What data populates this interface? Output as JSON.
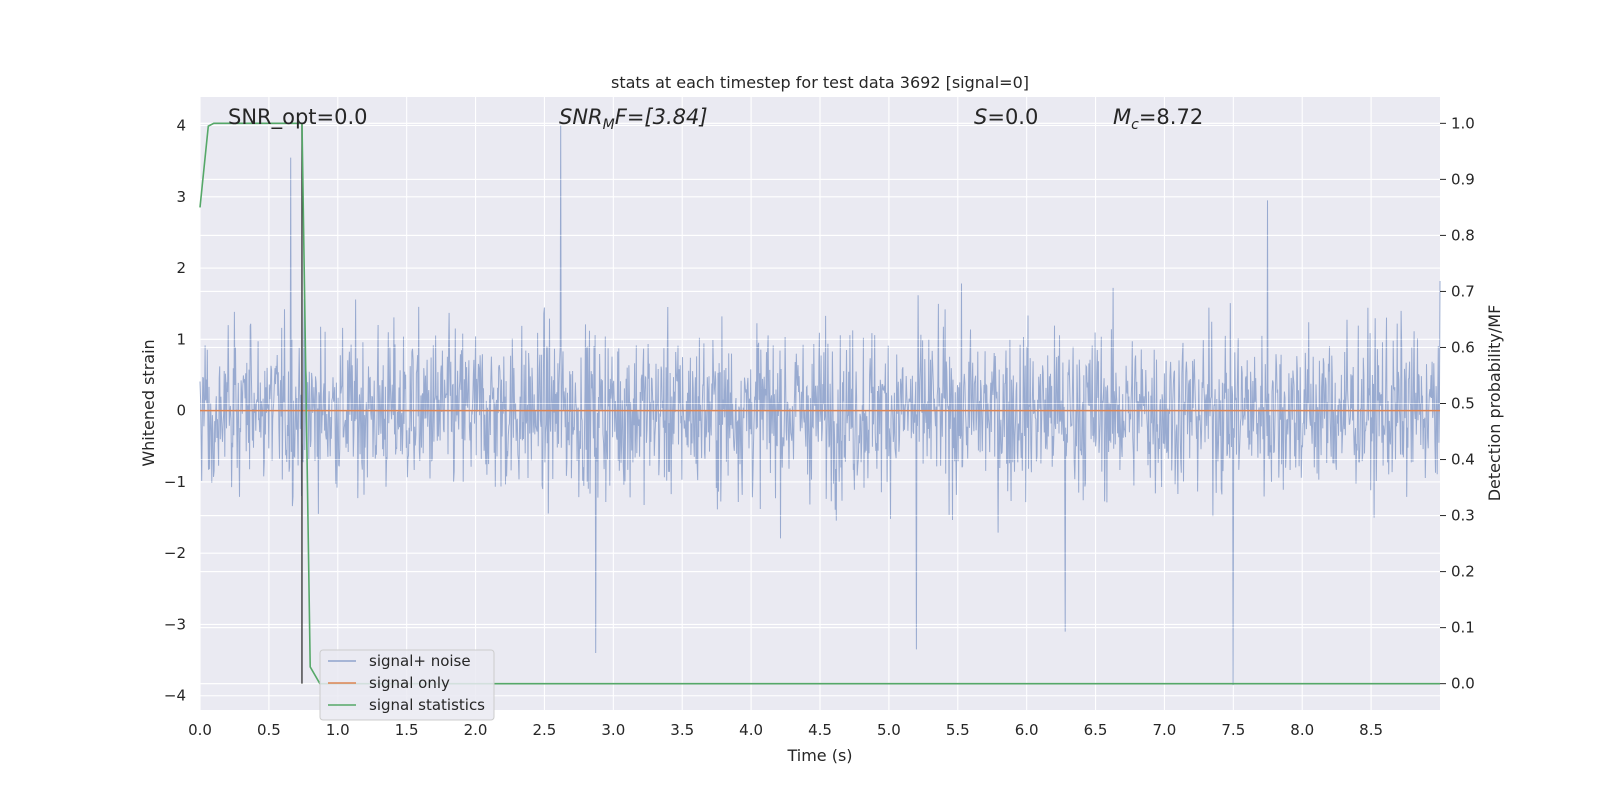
{
  "chart_data": {
    "type": "line",
    "title": "stats at each timestep for test data 3692 [signal=0]",
    "xlabel": "Time (s)",
    "ylabel_left": "Whitened strain",
    "ylabel_right": "Detection probability/MF",
    "xlim": [
      0.0,
      9.0
    ],
    "ylim_left": [
      -4.2,
      4.4
    ],
    "ylim_right": [
      -0.047,
      1.047
    ],
    "x_ticks": [
      "0.0",
      "0.5",
      "1.0",
      "1.5",
      "2.0",
      "2.5",
      "3.0",
      "3.5",
      "4.0",
      "4.5",
      "5.0",
      "5.5",
      "6.0",
      "6.5",
      "7.0",
      "7.5",
      "8.0",
      "8.5"
    ],
    "y_left_ticks": [
      "4",
      "3",
      "2",
      "1",
      "0",
      "−1",
      "−2",
      "−3",
      "−4"
    ],
    "y_right_ticks": [
      "1.0",
      "0.9",
      "0.8",
      "0.7",
      "0.6",
      "0.5",
      "0.4",
      "0.3",
      "0.2",
      "0.1",
      "0.0"
    ],
    "grid": true,
    "legend_placement": "lower-left",
    "annotations": {
      "snr_opt": "SNR_opt=0.0",
      "snr_mf_main": "SNR",
      "snr_mf_sub": "M",
      "snr_mf_rest": "F=[3.84]",
      "s_var": "S",
      "s_rest": "=0.0",
      "mc_var": "M",
      "mc_sub": "c",
      "mc_rest": "=8.72"
    },
    "series": [
      {
        "name": "signal+ noise",
        "color": "#8fa3cc",
        "description_values": "whitened noise, typical envelope ±1.7, peaks near 4.0 at t≈2.62 and −3.4 at t≈2.87",
        "envelope": [
          -1.7,
          1.7
        ],
        "peaks": [
          {
            "x": 0.66,
            "y": 3.55
          },
          {
            "x": 2.62,
            "y": 4.0
          },
          {
            "x": 2.87,
            "y": -3.4
          },
          {
            "x": 5.2,
            "y": -3.35
          },
          {
            "x": 6.28,
            "y": -3.1
          },
          {
            "x": 7.5,
            "y": -3.85
          },
          {
            "x": 7.75,
            "y": 2.95
          }
        ]
      },
      {
        "name": "signal only",
        "color": "#dd8452",
        "x": [
          0.0,
          9.0
        ],
        "y": [
          0.0,
          0.0
        ]
      },
      {
        "name": "signal statistics",
        "color": "#55a868",
        "axis": "right",
        "x": [
          0.0,
          0.06,
          0.1,
          0.2,
          0.3,
          0.4,
          0.5,
          0.6,
          0.7,
          0.74,
          0.8,
          0.87,
          0.9,
          1.0,
          2.0,
          4.0,
          6.0,
          8.0,
          9.0
        ],
        "y": [
          0.85,
          0.995,
          1.0,
          1.0,
          1.0,
          1.0,
          1.0,
          1.0,
          1.0,
          1.0,
          0.03,
          0.0,
          0.0,
          0.0,
          0.0,
          0.0,
          0.0,
          0.0,
          0.0
        ]
      }
    ],
    "markers": [
      {
        "name": "detection-time-line",
        "x": 0.74,
        "y_from": 0.0,
        "y_to": 1.0,
        "axis": "right",
        "color": "#404040"
      }
    ]
  },
  "colors": {
    "axes_bg": "#eaeaf2",
    "grid": "#ffffff",
    "text": "#262626"
  }
}
